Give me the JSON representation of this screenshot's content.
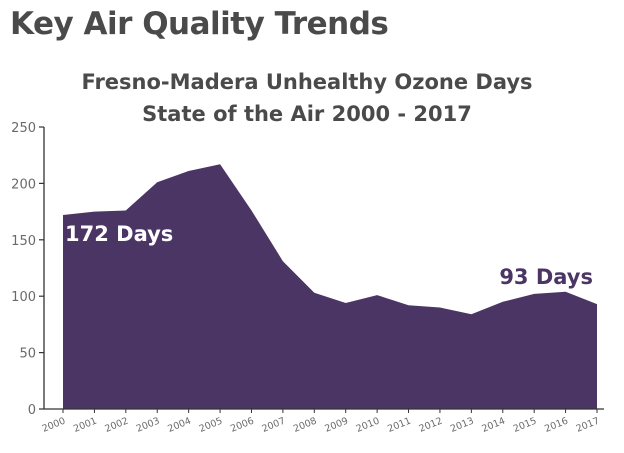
{
  "header": {
    "title": "Key Air Quality Trends"
  },
  "colors": {
    "area": "#4b3565",
    "heading": "#4a4a4a",
    "axis": "#333333"
  },
  "chart_data": {
    "type": "area",
    "title": [
      "Fresno-Madera Unhealthy Ozone Days",
      "State of the Air 2000 - 2017"
    ],
    "xlabel": "",
    "ylabel": "",
    "categories": [
      "2000",
      "2001",
      "2002",
      "2003",
      "2004",
      "2005",
      "2006",
      "2007",
      "2008",
      "2009",
      "2010",
      "2011",
      "2012",
      "2013",
      "2014",
      "2015",
      "2016",
      "2017"
    ],
    "series": [
      {
        "values": [
          172,
          175,
          176,
          201,
          211,
          217,
          176,
          131,
          103,
          94,
          101,
          92,
          90,
          84,
          95,
          102,
          104,
          93
        ]
      }
    ],
    "ylim": [
      0,
      250
    ],
    "yticks": [
      0,
      50,
      100,
      150,
      200,
      250
    ],
    "grid": false,
    "annotations": [
      {
        "text": "172 Days",
        "category": "2000",
        "color": "#ffffff"
      },
      {
        "text": "93 Days",
        "category": "2017",
        "color": "#4b3565"
      }
    ]
  }
}
